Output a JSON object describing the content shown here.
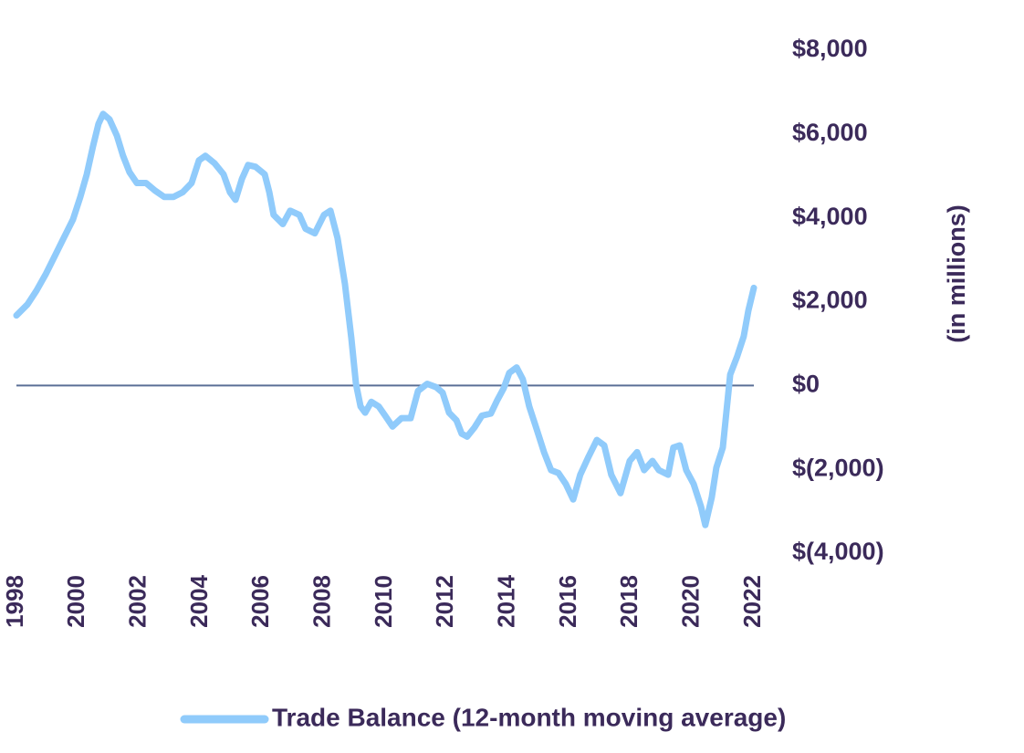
{
  "chart_data": {
    "type": "line",
    "ylabel": "(in millions)",
    "xlim": [
      1998,
      2022
    ],
    "xticks": [
      1998,
      2000,
      2002,
      2004,
      2006,
      2008,
      2010,
      2012,
      2014,
      2016,
      2018,
      2020,
      2022
    ],
    "ylim": [
      -4000,
      8000
    ],
    "yticks": [
      {
        "value": 8000,
        "label": "$8,000"
      },
      {
        "value": 6000,
        "label": "$6,000"
      },
      {
        "value": 4000,
        "label": "$4,000"
      },
      {
        "value": 2000,
        "label": "$2,000"
      },
      {
        "value": 0,
        "label": "$0"
      },
      {
        "value": -2000,
        "label": "$(2,000)"
      },
      {
        "value": -4000,
        "label": "$(4,000)"
      }
    ],
    "x": [
      1998.0,
      1998.36,
      1998.65,
      1998.95,
      1999.25,
      1999.54,
      1999.84,
      2000.08,
      2000.29,
      2000.49,
      2000.67,
      2000.82,
      2001.03,
      2001.27,
      2001.47,
      2001.68,
      2001.92,
      2002.22,
      2002.51,
      2002.81,
      2003.11,
      2003.41,
      2003.7,
      2003.94,
      2004.15,
      2004.45,
      2004.74,
      2004.95,
      2005.13,
      2005.34,
      2005.54,
      2005.78,
      2006.08,
      2006.23,
      2006.37,
      2006.67,
      2006.91,
      2007.21,
      2007.41,
      2007.71,
      2008.01,
      2008.22,
      2008.45,
      2008.69,
      2008.9,
      2009.05,
      2009.2,
      2009.35,
      2009.55,
      2009.79,
      2010.0,
      2010.24,
      2010.53,
      2010.83,
      2011.07,
      2011.37,
      2011.66,
      2011.87,
      2012.08,
      2012.32,
      2012.49,
      2012.67,
      2012.91,
      2013.15,
      2013.44,
      2013.65,
      2013.86,
      2014.04,
      2014.28,
      2014.48,
      2014.69,
      2014.93,
      2015.17,
      2015.4,
      2015.64,
      2015.88,
      2016.12,
      2016.35,
      2016.62,
      2016.89,
      2017.13,
      2017.36,
      2017.66,
      2017.96,
      2018.2,
      2018.43,
      2018.7,
      2018.91,
      2019.21,
      2019.38,
      2019.59,
      2019.8,
      2020.04,
      2020.28,
      2020.42,
      2020.63,
      2020.78,
      2020.99,
      2021.23,
      2021.46,
      2021.67,
      2021.82,
      2022.0
    ],
    "series": [
      {
        "name": "Trade Balance (12-month moving average)",
        "color": "#90cbfb",
        "values": [
          1670,
          1935,
          2260,
          2650,
          3090,
          3520,
          3960,
          4500,
          5040,
          5700,
          6240,
          6480,
          6350,
          5960,
          5480,
          5090,
          4830,
          4830,
          4650,
          4500,
          4500,
          4610,
          4830,
          5370,
          5480,
          5300,
          5040,
          4610,
          4430,
          4930,
          5260,
          5220,
          5040,
          4610,
          4070,
          3850,
          4170,
          4070,
          3740,
          3630,
          4070,
          4170,
          3520,
          2430,
          1130,
          40,
          -500,
          -650,
          -390,
          -500,
          -720,
          -980,
          -780,
          -780,
          -130,
          40,
          -40,
          -170,
          -650,
          -830,
          -1150,
          -1220,
          -1000,
          -720,
          -670,
          -350,
          -65,
          300,
          430,
          150,
          -500,
          -1040,
          -1590,
          -2020,
          -2090,
          -2350,
          -2720,
          -2130,
          -1700,
          -1300,
          -1430,
          -2130,
          -2570,
          -1800,
          -1590,
          -2020,
          -1800,
          -2020,
          -2130,
          -1480,
          -1430,
          -2020,
          -2350,
          -2890,
          -3330,
          -2670,
          -1960,
          -1480,
          260,
          700,
          1170,
          1780,
          2330
        ]
      }
    ]
  }
}
